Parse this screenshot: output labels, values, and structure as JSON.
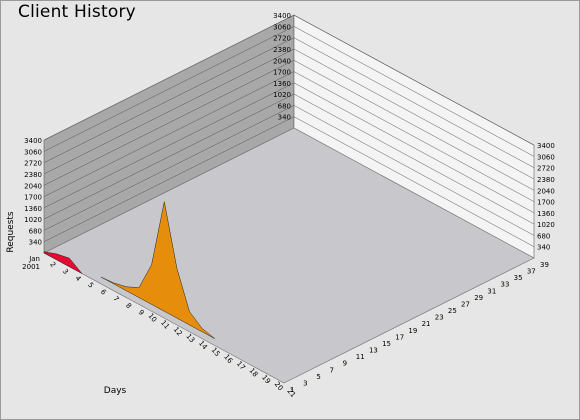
{
  "chart_data": {
    "type": "3d-ribbon",
    "title": "Client History",
    "zlabel": "Requests",
    "xlabel": "Days",
    "zlim": [
      0,
      3400
    ],
    "z_ticks": [
      "340",
      "680",
      "1020",
      "1360",
      "1700",
      "2040",
      "2380",
      "2720",
      "3060",
      "3400"
    ],
    "day_ticks": [
      "Jan\n2001",
      "2",
      "3",
      "4",
      "5",
      "6",
      "7",
      "8",
      "9",
      "10",
      "11",
      "12",
      "13",
      "14",
      "15",
      "16",
      "17",
      "18",
      "19",
      "20",
      "21"
    ],
    "client_ticks": [
      "1",
      "3",
      "5",
      "7",
      "9",
      "11",
      "13",
      "15",
      "17",
      "19",
      "21",
      "23",
      "25",
      "27",
      "29",
      "31",
      "33",
      "35",
      "37",
      "39"
    ],
    "series_colors": [
      "#e8002a",
      "#e88a00",
      "#2a7acc",
      "#00a060",
      "#b060c8",
      "#e0b000",
      "#00c8c8",
      "#6a6aff",
      "#ff70b0",
      "#208878",
      "#c02040",
      "#d89800"
    ],
    "series": [
      {
        "client": 1,
        "values": [
          40,
          180,
          260,
          0,
          0,
          0,
          0,
          0,
          0,
          0,
          0,
          0,
          0,
          0,
          0,
          0,
          0,
          0,
          0,
          0
        ]
      },
      {
        "client": 2,
        "values": [
          0,
          0,
          0,
          0,
          0,
          30,
          120,
          300,
          1200,
          3300,
          1500,
          400,
          100,
          0,
          0,
          0,
          0,
          0,
          0,
          0
        ]
      },
      {
        "client": 3,
        "values": [
          0,
          0,
          0,
          0,
          0,
          0,
          0,
          0,
          0,
          0,
          0,
          0,
          0,
          0,
          0,
          0,
          0,
          0,
          0,
          0
        ]
      },
      {
        "client": 4,
        "values": [
          0,
          0,
          0,
          0,
          0,
          0,
          0,
          0,
          0,
          0,
          0,
          0,
          0,
          0,
          0,
          0,
          0,
          0,
          0,
          0
        ]
      },
      {
        "client": 5,
        "values": [
          0,
          0,
          0,
          0,
          0,
          0,
          0,
          0,
          0,
          0,
          0,
          0,
          0,
          0,
          0,
          0,
          0,
          0,
          0,
          0
        ]
      },
      {
        "client": 6,
        "values": [
          0,
          0,
          0,
          0,
          0,
          0,
          0,
          0,
          0,
          0,
          0,
          0,
          0,
          0,
          0,
          0,
          0,
          0,
          0,
          0
        ]
      },
      {
        "client": 7,
        "values": [
          0,
          0,
          0,
          0,
          0,
          0,
          0,
          0,
          0,
          0,
          0,
          0,
          0,
          0,
          0,
          0,
          0,
          0,
          0,
          0
        ]
      },
      {
        "client": 8,
        "values": [
          0,
          0,
          0,
          0,
          0,
          0,
          0,
          0,
          0,
          0,
          0,
          0,
          0,
          0,
          0,
          0,
          0,
          0,
          0,
          0
        ]
      },
      {
        "client": 9,
        "values": [
          0,
          0,
          0,
          0,
          0,
          0,
          0,
          0,
          0,
          0,
          0,
          0,
          0,
          0,
          0,
          0,
          0,
          0,
          0,
          0
        ]
      },
      {
        "client": 10,
        "values": [
          0,
          0,
          0,
          0,
          0,
          0,
          0,
          0,
          0,
          0,
          0,
          0,
          0,
          0,
          0,
          0,
          0,
          0,
          0,
          0
        ]
      },
      {
        "client": 11,
        "values": [
          0,
          0,
          0,
          0,
          0,
          0,
          0,
          0,
          0,
          0,
          0,
          0,
          0,
          0,
          0,
          0,
          0,
          0,
          0,
          0
        ]
      },
      {
        "client": 12,
        "values": [
          0,
          0,
          0,
          0,
          0,
          0,
          0,
          0,
          0,
          0,
          0,
          0,
          0,
          0,
          0,
          0,
          0,
          0,
          0,
          0
        ]
      },
      {
        "client": 13,
        "values": [
          0,
          0,
          0,
          0,
          0,
          0,
          0,
          0,
          0,
          0,
          0,
          0,
          0,
          0,
          0,
          0,
          0,
          0,
          0,
          0
        ]
      },
      {
        "client": 14,
        "values": [
          0,
          0,
          0,
          0,
          0,
          0,
          0,
          0,
          0,
          0,
          0,
          0,
          0,
          0,
          0,
          0,
          0,
          0,
          0,
          0
        ]
      },
      {
        "client": 15,
        "values": [
          0,
          0,
          0,
          0,
          0,
          0,
          0,
          0,
          0,
          0,
          0,
          0,
          0,
          0,
          0,
          0,
          0,
          0,
          0,
          0
        ]
      },
      {
        "client": 16,
        "values": [
          0,
          0,
          0,
          0,
          0,
          0,
          0,
          0,
          0,
          0,
          0,
          0,
          0,
          0,
          0,
          0,
          0,
          0,
          0,
          0
        ]
      },
      {
        "client": 17,
        "values": [
          0,
          0,
          0,
          0,
          0,
          0,
          0,
          0,
          0,
          0,
          0,
          0,
          0,
          0,
          0,
          0,
          0,
          0,
          0,
          0
        ]
      },
      {
        "client": 18,
        "values": [
          0,
          0,
          0,
          0,
          0,
          0,
          0,
          0,
          0,
          0,
          0,
          0,
          0,
          0,
          0,
          0,
          0,
          0,
          0,
          0
        ]
      },
      {
        "client": 19,
        "values": [
          0,
          0,
          0,
          0,
          0,
          0,
          0,
          0,
          0,
          0,
          0,
          0,
          0,
          0,
          0,
          0,
          0,
          0,
          0,
          0
        ]
      },
      {
        "client": 20,
        "values": [
          0,
          0,
          0,
          0,
          0,
          0,
          0,
          0,
          0,
          0,
          0,
          0,
          0,
          0,
          0,
          0,
          0,
          0,
          0,
          0
        ]
      },
      {
        "client": 21,
        "values": [
          0,
          0,
          0,
          0,
          0,
          0,
          0,
          0,
          0,
          0,
          0,
          0,
          0,
          0,
          0,
          0,
          0,
          0,
          0,
          0
        ]
      },
      {
        "client": 22,
        "values": [
          0,
          0,
          0,
          0,
          0,
          0,
          0,
          0,
          0,
          0,
          0,
          0,
          0,
          0,
          0,
          0,
          0,
          0,
          0,
          0
        ]
      },
      {
        "client": 23,
        "values": [
          0,
          0,
          0,
          0,
          0,
          0,
          0,
          0,
          0,
          0,
          0,
          0,
          0,
          0,
          0,
          0,
          0,
          0,
          0,
          0
        ]
      },
      {
        "client": 24,
        "values": [
          0,
          0,
          0,
          0,
          0,
          0,
          0,
          0,
          0,
          0,
          0,
          0,
          0,
          0,
          0,
          0,
          0,
          0,
          0,
          0
        ]
      },
      {
        "client": 25,
        "values": [
          0,
          0,
          0,
          0,
          0,
          0,
          0,
          0,
          0,
          0,
          0,
          0,
          0,
          0,
          0,
          0,
          0,
          0,
          0,
          0
        ]
      },
      {
        "client": 26,
        "values": [
          0,
          0,
          0,
          0,
          0,
          0,
          0,
          0,
          0,
          0,
          0,
          0,
          0,
          0,
          0,
          0,
          0,
          0,
          0,
          0
        ]
      },
      {
        "client": 27,
        "values": [
          0,
          0,
          0,
          0,
          0,
          0,
          0,
          0,
          0,
          0,
          0,
          0,
          0,
          0,
          0,
          0,
          0,
          0,
          0,
          0
        ]
      },
      {
        "client": 28,
        "values": [
          0,
          0,
          0,
          0,
          0,
          0,
          0,
          0,
          0,
          0,
          0,
          0,
          0,
          0,
          0,
          0,
          0,
          0,
          0,
          0
        ]
      },
      {
        "client": 29,
        "values": [
          0,
          0,
          0,
          0,
          0,
          0,
          0,
          0,
          0,
          0,
          0,
          0,
          0,
          0,
          0,
          0,
          0,
          0,
          0,
          0
        ]
      },
      {
        "client": 30,
        "values": [
          0,
          0,
          0,
          0,
          0,
          0,
          0,
          0,
          0,
          0,
          0,
          0,
          0,
          0,
          0,
          0,
          0,
          0,
          0,
          0
        ]
      },
      {
        "client": 31,
        "values": [
          0,
          0,
          0,
          0,
          0,
          0,
          0,
          0,
          0,
          0,
          0,
          0,
          0,
          0,
          0,
          0,
          0,
          0,
          0,
          0
        ]
      },
      {
        "client": 32,
        "values": [
          0,
          0,
          0,
          0,
          0,
          0,
          0,
          0,
          0,
          0,
          0,
          0,
          0,
          0,
          0,
          0,
          0,
          0,
          0,
          0
        ]
      },
      {
        "client": 33,
        "values": [
          0,
          0,
          0,
          0,
          0,
          0,
          0,
          0,
          0,
          0,
          0,
          0,
          0,
          0,
          0,
          0,
          0,
          0,
          0,
          0
        ]
      },
      {
        "client": 34,
        "values": [
          0,
          0,
          0,
          0,
          0,
          0,
          0,
          0,
          0,
          0,
          0,
          0,
          0,
          0,
          0,
          0,
          0,
          0,
          0,
          0
        ]
      },
      {
        "client": 35,
        "values": [
          0,
          0,
          0,
          0,
          0,
          0,
          0,
          0,
          0,
          0,
          0,
          0,
          0,
          0,
          0,
          0,
          0,
          0,
          0,
          0
        ]
      },
      {
        "client": 36,
        "values": [
          0,
          0,
          0,
          0,
          0,
          0,
          0,
          0,
          0,
          0,
          0,
          0,
          0,
          0,
          0,
          0,
          0,
          0,
          0,
          0
        ]
      },
      {
        "client": 37,
        "values": [
          0,
          0,
          0,
          0,
          0,
          0,
          0,
          0,
          0,
          0,
          0,
          0,
          0,
          0,
          0,
          0,
          0,
          0,
          0,
          0
        ]
      },
      {
        "client": 38,
        "values": [
          0,
          0,
          0,
          0,
          0,
          0,
          0,
          0,
          0,
          0,
          0,
          0,
          0,
          0,
          0,
          0,
          0,
          0,
          0,
          0
        ]
      },
      {
        "client": 39,
        "values": [
          0,
          0,
          0,
          0,
          0,
          0,
          0,
          0,
          0,
          0,
          0,
          0,
          0,
          0,
          0,
          0,
          0,
          0,
          0,
          0
        ]
      }
    ]
  }
}
